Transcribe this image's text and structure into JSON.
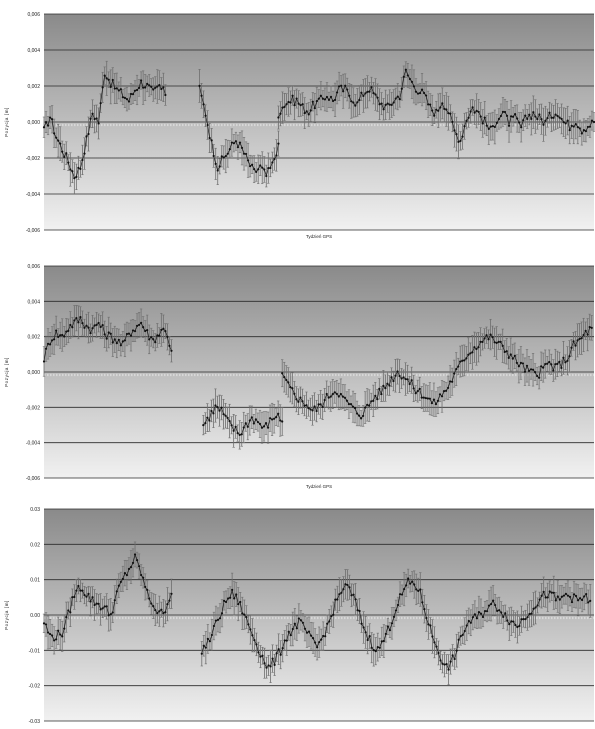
{
  "chart_data": [
    {
      "type": "line",
      "title": "",
      "xlabel": "Tydzień GPS",
      "ylabel": "Pozycja [m]",
      "ylim": [
        -0.006,
        0.006
      ],
      "yticks": [
        "0,006",
        "0,004",
        "0,002",
        "0,000",
        "-0,002",
        "-0,004",
        "-0,006"
      ],
      "ytick_values": [
        0.006,
        0.004,
        0.002,
        0.0,
        -0.002,
        -0.004,
        -0.006
      ],
      "grid": true,
      "error_bars": true,
      "mean_line": 0.0,
      "series": [
        {
          "segments": [
            {
              "x": [
                0,
                8,
                16,
                24,
                32,
                40,
                48,
                56,
                64,
                72,
                80,
                88,
                96,
                104,
                112,
                120,
                128,
                136,
                144,
                152,
                160
              ],
              "y": [
                -0.0005,
                0.0003,
                -0.0008,
                -0.0015,
                -0.0022,
                -0.003,
                -0.0025,
                -0.001,
                0.0005,
                0.0,
                0.0028,
                0.0022,
                0.0018,
                0.0015,
                0.0012,
                0.0018,
                0.0022,
                0.002,
                0.0016,
                0.002,
                0.0015
              ]
            },
            {
              "x": [
                205,
                213,
                221,
                229,
                237,
                245,
                253,
                261,
                269,
                277,
                285,
                293,
                301,
                309
              ],
              "y": [
                0.0018,
                0.0005,
                -0.0012,
                -0.0025,
                -0.002,
                -0.0015,
                -0.001,
                -0.0015,
                -0.0022,
                -0.0028,
                -0.0025,
                -0.003,
                -0.0024,
                -0.0012
              ]
            },
            {
              "x": [
                309,
                317,
                325,
                333,
                341,
                349,
                357,
                365,
                373,
                381,
                389,
                397,
                405,
                413,
                421,
                429,
                437,
                445,
                453,
                461,
                469,
                477,
                485,
                493,
                501,
                509,
                517,
                525,
                533,
                541,
                549,
                557,
                565,
                573,
                581,
                589,
                597,
                605,
                613,
                621,
                629,
                637,
                645,
                653,
                661,
                669,
                677,
                685,
                693,
                701,
                709,
                717,
                725
              ],
              "y": [
                0.0005,
                0.001,
                0.0012,
                0.0012,
                0.0008,
                0.0006,
                0.001,
                0.0012,
                0.0015,
                0.0012,
                0.0018,
                0.0018,
                0.0014,
                0.001,
                0.0016,
                0.0019,
                0.0014,
                0.001,
                0.0008,
                0.0012,
                0.0015,
                0.0028,
                0.0022,
                0.0018,
                0.0015,
                0.0008,
                0.0005,
                0.0012,
                0.0006,
                -0.0005,
                -0.001,
                0.0002,
                0.0008,
                0.0005,
                0.0,
                -0.0005,
                0.0002,
                0.0005,
                0.0,
                0.0002,
                -0.0003,
                0.0003,
                0.0005,
                0.0002,
                0.0,
                0.0004,
                0.0006,
                0.0,
                -0.0002,
                0.0001,
                -0.0004,
                -0.0002,
                0.0
              ]
            }
          ]
        }
      ]
    },
    {
      "type": "line",
      "title": "",
      "xlabel": "Tydzień GPS",
      "ylabel": "Pozycja [m]",
      "ylim": [
        -0.006,
        0.006
      ],
      "yticks": [
        "0,006",
        "0,004",
        "0,002",
        "0,000",
        "-0,002",
        "-0,004",
        "-0,006"
      ],
      "ytick_values": [
        0.006,
        0.004,
        0.002,
        0.0,
        -0.002,
        -0.004,
        -0.006
      ],
      "grid": true,
      "error_bars": true,
      "mean_line": 0.0,
      "series": [
        {
          "segments": [
            {
              "x": [
                0,
                8,
                16,
                24,
                32,
                40,
                48,
                56,
                64,
                72,
                80,
                88,
                96,
                104,
                112,
                120,
                128,
                136,
                144,
                152,
                160,
                168
              ],
              "y": [
                0.0008,
                0.0018,
                0.0022,
                0.002,
                0.0025,
                0.0028,
                0.003,
                0.0026,
                0.0024,
                0.0028,
                0.0022,
                0.002,
                0.0018,
                0.0015,
                0.0022,
                0.0025,
                0.0028,
                0.0022,
                0.0018,
                0.0022,
                0.0025,
                0.0012
              ]
            },
            {
              "x": [
                210,
                218,
                226,
                234,
                242,
                250,
                258,
                266,
                274,
                282,
                290,
                298,
                306,
                314
              ],
              "y": [
                -0.003,
                -0.0025,
                -0.002,
                -0.0022,
                -0.0028,
                -0.0032,
                -0.0035,
                -0.003,
                -0.0026,
                -0.0028,
                -0.0032,
                -0.0028,
                -0.0024,
                -0.0028
              ]
            },
            {
              "x": [
                314,
                322,
                330,
                338,
                346,
                354,
                362,
                370,
                378,
                386,
                394,
                402,
                410,
                418,
                426,
                434,
                442,
                450,
                458,
                466,
                474,
                482,
                490,
                498,
                506,
                514,
                522,
                530,
                538,
                546,
                554,
                562,
                570,
                578,
                586,
                594,
                602,
                610,
                618,
                626,
                634,
                642,
                650,
                658,
                666,
                674,
                682,
                690,
                698,
                706,
                714,
                722
              ],
              "y": [
                -0.0002,
                -0.0008,
                -0.0012,
                -0.0016,
                -0.0018,
                -0.0022,
                -0.002,
                -0.0016,
                -0.0012,
                -0.001,
                -0.0015,
                -0.0018,
                -0.0022,
                -0.0024,
                -0.002,
                -0.0015,
                -0.0012,
                -0.0008,
                -0.0004,
                0.0,
                -0.0002,
                -0.0006,
                -0.001,
                -0.0012,
                -0.0015,
                -0.0018,
                -0.0014,
                -0.001,
                -0.0004,
                0.0002,
                0.0008,
                0.0012,
                0.0015,
                0.0018,
                0.002,
                0.0018,
                0.0015,
                0.0012,
                0.0008,
                0.0005,
                0.0002,
                0.0,
                -0.0002,
                0.0002,
                0.0005,
                0.0002,
                0.0005,
                0.0008,
                0.0015,
                0.0018,
                0.0022,
                0.0025
              ]
            }
          ]
        }
      ]
    },
    {
      "type": "line",
      "title": "",
      "xlabel": "",
      "ylabel": "Pozycja [m]",
      "ylim": [
        -0.03,
        0.03
      ],
      "yticks": [
        "0.03",
        "0.02",
        "0.01",
        "0.00",
        "-0.01",
        "-0.02",
        "-0.03"
      ],
      "ytick_values": [
        0.03,
        0.02,
        0.01,
        0.0,
        -0.01,
        -0.02,
        -0.03
      ],
      "grid": true,
      "error_bars": true,
      "mean_line": 0.0,
      "series": [
        {
          "segments": [
            {
              "x": [
                0,
                8,
                16,
                24,
                32,
                40,
                48,
                56,
                64,
                72,
                80,
                88,
                96,
                104,
                112,
                120,
                128,
                136,
                144,
                152,
                160,
                168
              ],
              "y": [
                -0.002,
                -0.006,
                -0.006,
                -0.005,
                0.0,
                0.006,
                0.008,
                0.006,
                0.004,
                0.003,
                0.002,
                0.0,
                0.006,
                0.01,
                0.013,
                0.016,
                0.012,
                0.006,
                0.003,
                0.0,
                0.002,
                0.006
              ]
            },
            {
              "x": [
                208,
                216,
                224,
                232,
                240,
                248,
                256,
                264,
                272,
                280,
                288,
                296,
                304,
                312,
                320,
                328,
                336,
                344,
                352,
                360,
                368,
                376,
                384,
                392,
                400,
                408,
                416,
                424,
                432,
                440,
                448,
                456,
                464,
                472,
                480,
                488,
                496,
                504,
                512,
                520,
                528,
                536,
                544,
                552,
                560,
                568,
                576,
                584,
                592,
                600,
                608,
                616,
                624,
                632,
                640,
                648,
                656,
                664,
                672,
                680,
                688,
                696,
                704,
                712,
                720
              ],
              "y": [
                -0.01,
                -0.008,
                -0.004,
                0.0,
                0.004,
                0.006,
                0.004,
                0.0,
                -0.004,
                -0.008,
                -0.012,
                -0.015,
                -0.013,
                -0.01,
                -0.006,
                -0.004,
                -0.002,
                -0.004,
                -0.007,
                -0.009,
                -0.006,
                -0.002,
                0.003,
                0.007,
                0.008,
                0.005,
                0.0,
                -0.005,
                -0.008,
                -0.01,
                -0.007,
                -0.003,
                0.002,
                0.006,
                0.009,
                0.009,
                0.006,
                0.0,
                -0.006,
                -0.01,
                -0.015,
                -0.014,
                -0.01,
                -0.005,
                -0.002,
                -0.001,
                0.0,
                0.002,
                0.003,
                0.002,
                0.0,
                -0.002,
                -0.003,
                -0.001,
                0.001,
                0.003,
                0.005,
                0.006,
                0.005,
                0.004,
                0.006,
                0.005,
                0.004,
                0.005,
                0.004
              ]
            }
          ]
        }
      ]
    }
  ]
}
